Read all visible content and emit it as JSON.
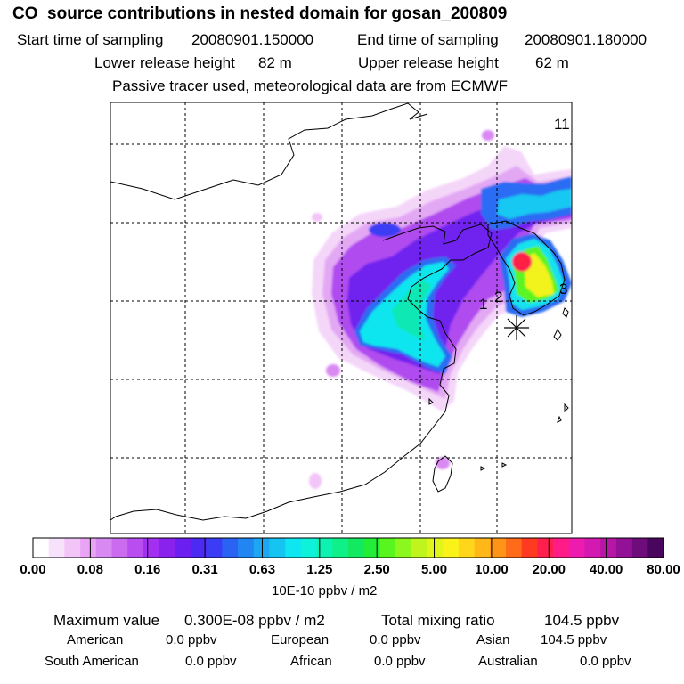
{
  "header": {
    "title": "CO  source contributions in nested domain for gosan_200809",
    "start_label": "Start time of sampling",
    "start_value": "20080901.150000",
    "end_label": "End time of sampling",
    "end_value": "20080901.180000",
    "lower_label": "Lower release height",
    "lower_value": "82 m",
    "upper_label": "Upper release height",
    "upper_value": "62 m",
    "note": "Passive tracer used, meteorological data are from ECMWF"
  },
  "chart_data": {
    "type": "heatmap",
    "title": "CO  source contributions in nested domain for gosan_200809",
    "colorbar_unit": "10E-10 ppbv / m2",
    "colorbar_levels": [
      "0.00",
      "0.08",
      "0.16",
      "0.31",
      "0.63",
      "1.25",
      "2.50",
      "5.00",
      "10.00",
      "20.00",
      "40.00",
      "80.00"
    ],
    "colorbar_colors": [
      "#ffffff",
      "#f8e2fb",
      "#f2c4f8",
      "#eaa4f5",
      "#d98af2",
      "#cb6cf0",
      "#b94def",
      "#a32ff0",
      "#8a22ee",
      "#6b1ff0",
      "#4d2af2",
      "#3a3df5",
      "#2a63f3",
      "#2286f2",
      "#1da6f2",
      "#16c4f2",
      "#0ee6f0",
      "#0df2d8",
      "#0df2b0",
      "#10f088",
      "#12e860",
      "#22ee38",
      "#58f51f",
      "#8cf71d",
      "#bff51c",
      "#e2f51a",
      "#fbf21a",
      "#ffd619",
      "#ffb818",
      "#ff9418",
      "#ff6b18",
      "#ff3a20",
      "#ff1f4f",
      "#ff1c86",
      "#ee1cae",
      "#d319b2",
      "#b516a4",
      "#921196",
      "#6e0c7c",
      "#4a065e"
    ],
    "map_labels": [
      "11",
      "1",
      "2",
      "3"
    ],
    "receptor_marker": "*"
  },
  "footer": {
    "max_label": "Maximum value",
    "max_value": "0.300E-08 ppbv / m2",
    "total_label": "Total mixing ratio",
    "total_value": "104.5 ppbv",
    "regions": [
      {
        "name": "American",
        "value": "0.0 ppbv"
      },
      {
        "name": "European",
        "value": "0.0 ppbv"
      },
      {
        "name": "Asian",
        "value": "104.5 ppbv"
      },
      {
        "name": "South American",
        "value": "0.0 ppbv"
      },
      {
        "name": "African",
        "value": "0.0 ppbv"
      },
      {
        "name": "Australian",
        "value": "0.0 ppbv"
      }
    ]
  }
}
